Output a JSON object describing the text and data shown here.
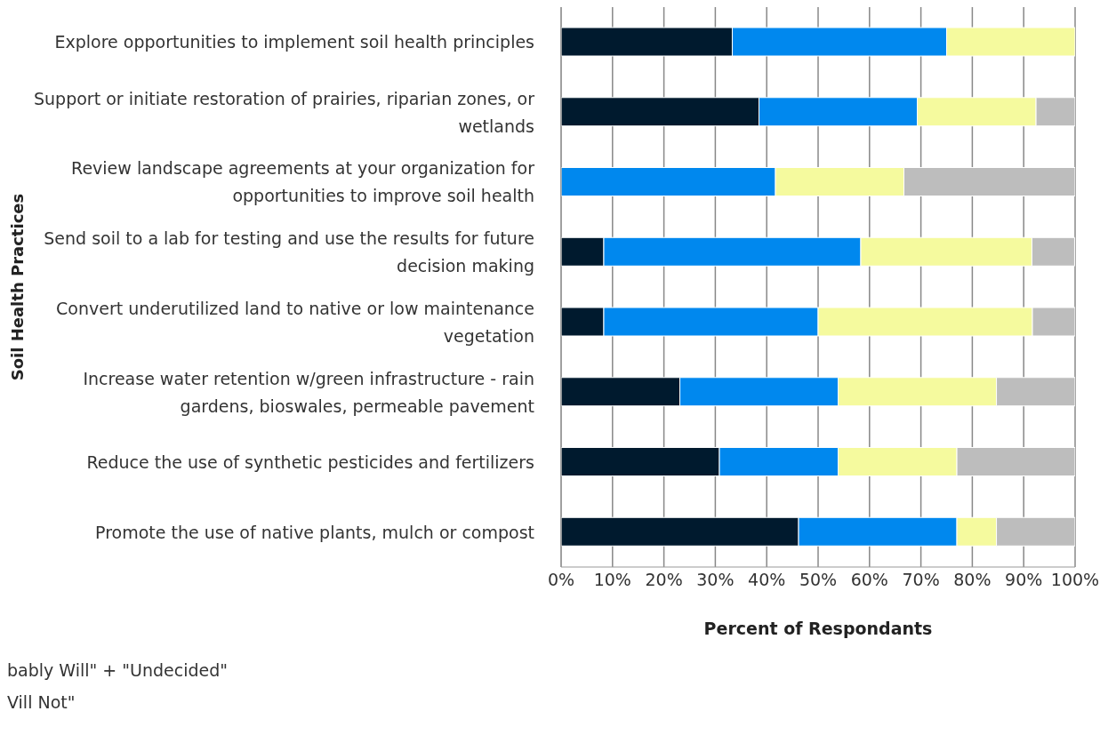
{
  "chart_data": {
    "type": "bar",
    "orientation": "horizontal",
    "stacked": true,
    "ylabel": "Soil Health Practices",
    "xlabel": "Percent of Respondants",
    "categories": [
      "Explore opportunities to implement soil health principles",
      "Support or initiate restoration of prairies, riparian zones, or wetlands",
      "Review landscape agreements at your organization for opportunities to improve soil health",
      "Send soil to a lab for testing and use the results for future decision making",
      "Convert underutilized land to native or low maintenance vegetation",
      "Increase water retention w/green infrastructure -  rain gardens, bioswales, permeable pavement",
      "Reduce the use of synthetic pesticides and fertilizers",
      "Promote the use of native plants, mulch or compost"
    ],
    "series": [
      {
        "color": "#001a2e",
        "values": [
          33.3,
          38.5,
          0,
          8.3,
          8.3,
          23.1,
          30.8,
          46.2
        ]
      },
      {
        "color": "#0088ee",
        "values": [
          41.7,
          30.8,
          41.7,
          50,
          41.7,
          30.8,
          23.1,
          30.8
        ]
      },
      {
        "color": "#f5fa9e",
        "values": [
          25,
          23.1,
          25,
          33.3,
          41.7,
          30.8,
          23.1,
          7.7
        ]
      },
      {
        "color": "#bdbdbd",
        "values": [
          0,
          7.7,
          33.3,
          8.3,
          8.3,
          15.4,
          23.1,
          15.4
        ]
      }
    ],
    "xlim": [
      0,
      100
    ],
    "xticks": [
      {
        "value": 0,
        "label": "0%"
      },
      {
        "value": 10,
        "label": "10%"
      },
      {
        "value": 20,
        "label": "20%"
      },
      {
        "value": 30,
        "label": "30%"
      },
      {
        "value": 40,
        "label": "40%"
      },
      {
        "value": 50,
        "label": "50%"
      },
      {
        "value": 60,
        "label": "60%"
      },
      {
        "value": 70,
        "label": "70%"
      },
      {
        "value": 80,
        "label": "80%"
      },
      {
        "value": 90,
        "label": "90%"
      },
      {
        "value": 100,
        "label": "100%"
      }
    ],
    "grid": "x",
    "annotations": [
      "bably Will\" + \"Undecided\"",
      "Vill Not\""
    ]
  }
}
